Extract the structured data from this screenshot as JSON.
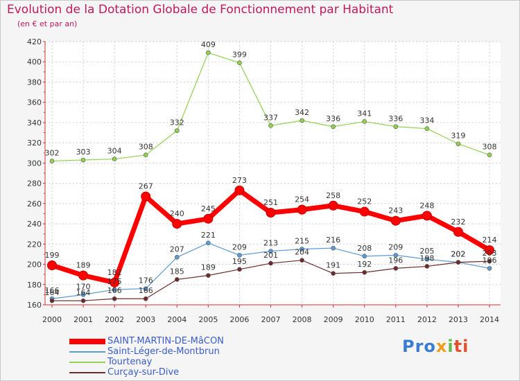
{
  "chart_data": {
    "type": "line",
    "title": "Evolution de la Dotation Globale de Fonctionnement par Habitant",
    "subtitle": "(en € et par an)",
    "xlabel": "",
    "ylabel": "",
    "ylim": [
      160,
      420
    ],
    "yticks": [
      160,
      180,
      200,
      220,
      240,
      260,
      280,
      300,
      320,
      340,
      360,
      380,
      400,
      420
    ],
    "grid": true,
    "legend_position": "bottom-left",
    "categories": [
      "2000",
      "2001",
      "2002",
      "2003",
      "2004",
      "2005",
      "2006",
      "2007",
      "2008",
      "2009",
      "2010",
      "2011",
      "2012",
      "2013",
      "2014"
    ],
    "series": [
      {
        "name": "SAINT-MARTIN-DE-MâCON",
        "color": "#ff0000",
        "values": [
          199,
          189,
          182,
          267,
          240,
          245,
          273,
          251,
          254,
          258,
          252,
          243,
          248,
          232,
          214
        ]
      },
      {
        "name": "Saint-Léger-de-Montbrun",
        "color": "#5b9bd5",
        "values": [
          166,
          170,
          175,
          176,
          207,
          221,
          209,
          213,
          215,
          216,
          208,
          209,
          205,
          202,
          196
        ]
      },
      {
        "name": "Tourtenay",
        "color": "#92d050",
        "values": [
          302,
          303,
          304,
          308,
          332,
          409,
          399,
          337,
          342,
          336,
          341,
          336,
          334,
          319,
          308
        ]
      },
      {
        "name": "Curçay-sur-Dive",
        "color": "#6d2b2b",
        "values": [
          164,
          164,
          166,
          166,
          185,
          189,
          195,
          201,
          204,
          191,
          192,
          196,
          198,
          202,
          203
        ]
      }
    ]
  },
  "legend": {
    "items": [
      {
        "label": "SAINT-MARTIN-DE-MâCON",
        "color": "#ff0000"
      },
      {
        "label": "Saint-Léger-de-Montbrun",
        "color": "#5b9bd5"
      },
      {
        "label": "Tourtenay",
        "color": "#92d050"
      },
      {
        "label": "Curçay-sur-Dive",
        "color": "#6d2b2b"
      }
    ]
  },
  "logo": {
    "text": "Proxiti",
    "parts": [
      "Pro",
      "x",
      "i",
      "ti"
    ]
  }
}
